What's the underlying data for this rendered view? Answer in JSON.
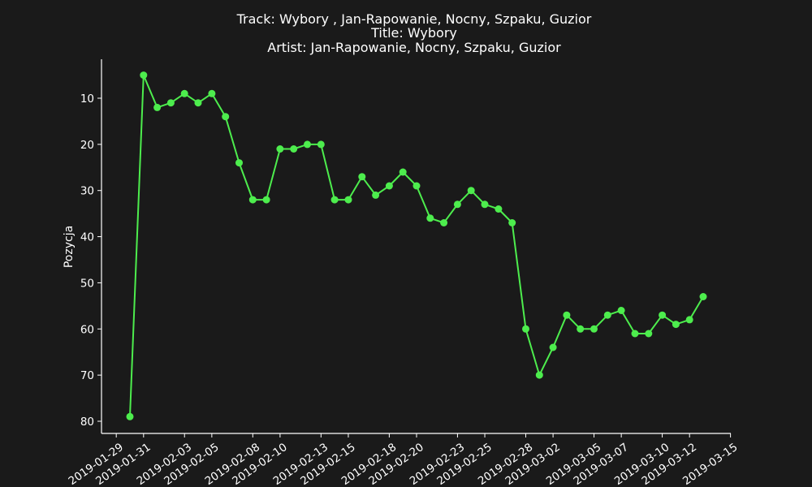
{
  "chart_data": {
    "type": "line",
    "title_lines": [
      "Track:  Wybory , Jan-Rapowanie, Nocny, Szpaku, Guzior",
      "Title:  Wybory",
      "Artist:  Jan-Rapowanie, Nocny, Szpaku, Guzior"
    ],
    "xlabel": "",
    "ylabel": "Pozycja",
    "y_inverted": true,
    "ylim": [
      83,
      2
    ],
    "xlim": [
      "2019-01-29",
      "2019-03-15"
    ],
    "y_ticks": [
      10,
      20,
      30,
      40,
      50,
      60,
      70,
      80
    ],
    "x_ticks": [
      "2019-01-29",
      "2019-01-31",
      "2019-02-03",
      "2019-02-05",
      "2019-02-08",
      "2019-02-10",
      "2019-02-13",
      "2019-02-15",
      "2019-02-18",
      "2019-02-20",
      "2019-02-23",
      "2019-02-25",
      "2019-02-28",
      "2019-03-02",
      "2019-03-05",
      "2019-03-07",
      "2019-03-10",
      "2019-03-12",
      "2019-03-15"
    ],
    "line_color": "#4ded4d",
    "series": [
      {
        "x": [
          "2019-01-30",
          "2019-01-31",
          "2019-02-01",
          "2019-02-02",
          "2019-02-03",
          "2019-02-04",
          "2019-02-05",
          "2019-02-06",
          "2019-02-07",
          "2019-02-08",
          "2019-02-09",
          "2019-02-10",
          "2019-02-11",
          "2019-02-12",
          "2019-02-13",
          "2019-02-14",
          "2019-02-15",
          "2019-02-16",
          "2019-02-17",
          "2019-02-18",
          "2019-02-19",
          "2019-02-20",
          "2019-02-21",
          "2019-02-22",
          "2019-02-23",
          "2019-02-24",
          "2019-02-25",
          "2019-02-26",
          "2019-02-27",
          "2019-02-28",
          "2019-03-01",
          "2019-03-02",
          "2019-03-03",
          "2019-03-04",
          "2019-03-05",
          "2019-03-06",
          "2019-03-07",
          "2019-03-08",
          "2019-03-09",
          "2019-03-10",
          "2019-03-11",
          "2019-03-12",
          "2019-03-13"
        ],
        "values": [
          79,
          5,
          12,
          11,
          9,
          11,
          9,
          14,
          24,
          32,
          32,
          21,
          21,
          20,
          20,
          32,
          32,
          27,
          31,
          29,
          26,
          29,
          36,
          37,
          33,
          30,
          33,
          34,
          37,
          60,
          70,
          64,
          57,
          60,
          60,
          57,
          56,
          61,
          61,
          57,
          59,
          58,
          53
        ]
      }
    ]
  }
}
